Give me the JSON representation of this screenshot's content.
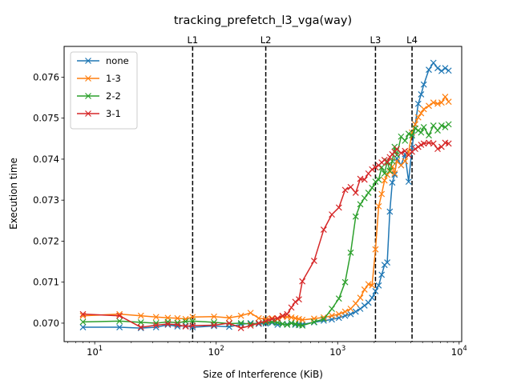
{
  "chart_data": {
    "type": "line",
    "title": "tracking_prefetch_l3_vga(way)",
    "xlabel": "Size of Interference (KiB)",
    "ylabel": "Execution time",
    "xscale": "log",
    "xlim": [
      5.6,
      10500
    ],
    "ylim": [
      0.06955,
      0.07675
    ],
    "x_ticks": [
      {
        "value": 10,
        "base": "10",
        "exp": "1"
      },
      {
        "value": 100,
        "base": "10",
        "exp": "2"
      },
      {
        "value": 1000,
        "base": "10",
        "exp": "3"
      },
      {
        "value": 10000,
        "base": "10",
        "exp": "4"
      }
    ],
    "y_ticks": [
      {
        "value": 0.07,
        "label": "0.070"
      },
      {
        "value": 0.071,
        "label": "0.071"
      },
      {
        "value": 0.072,
        "label": "0.072"
      },
      {
        "value": 0.073,
        "label": "0.073"
      },
      {
        "value": 0.074,
        "label": "0.074"
      },
      {
        "value": 0.075,
        "label": "0.075"
      },
      {
        "value": 0.076,
        "label": "0.076"
      }
    ],
    "grid": false,
    "legend_position": "upper-left",
    "vertical_lines": [
      {
        "label": "L1",
        "x": 64
      },
      {
        "label": "L2",
        "x": 256
      },
      {
        "label": "L3",
        "x": 2048
      },
      {
        "label": "L4",
        "x": 4096
      }
    ],
    "series": [
      {
        "name": "none",
        "color": "#1f77b4",
        "marker": "x",
        "x": [
          8,
          16,
          24,
          32,
          40,
          48,
          56,
          64,
          96,
          128,
          160,
          192,
          224,
          256,
          288,
          320,
          352,
          384,
          416,
          448,
          480,
          512,
          640,
          768,
          896,
          1024,
          1152,
          1280,
          1408,
          1536,
          1664,
          1792,
          1920,
          2048,
          2176,
          2304,
          2432,
          2560,
          2688,
          2816,
          2944,
          3072,
          3328,
          3584,
          3840,
          4096,
          4352,
          4608,
          4864,
          5120,
          5632,
          6144,
          6656,
          7168,
          7680,
          8192
        ],
        "y": [
          0.0699,
          0.0699,
          0.06988,
          0.0699,
          0.06996,
          0.06992,
          0.06994,
          0.0699,
          0.06993,
          0.06991,
          0.06997,
          0.07,
          0.06998,
          0.06999,
          0.07001,
          0.06996,
          0.06998,
          0.06997,
          0.07,
          0.06996,
          0.06998,
          0.06997,
          0.07002,
          0.07006,
          0.07009,
          0.07013,
          0.07018,
          0.07022,
          0.07028,
          0.07035,
          0.07043,
          0.0705,
          0.07062,
          0.07078,
          0.07092,
          0.07118,
          0.07142,
          0.07148,
          0.07272,
          0.07343,
          0.07362,
          0.07402,
          0.07385,
          0.07412,
          0.07345,
          0.07428,
          0.07485,
          0.07535,
          0.07558,
          0.07582,
          0.07618,
          0.07635,
          0.07622,
          0.07615,
          0.07622,
          0.07616
        ]
      },
      {
        "name": "1-3",
        "color": "#ff7f0e",
        "marker": "x",
        "x": [
          8,
          16,
          24,
          32,
          40,
          48,
          56,
          64,
          96,
          128,
          160,
          192,
          224,
          256,
          288,
          320,
          352,
          384,
          416,
          448,
          480,
          512,
          640,
          768,
          896,
          1024,
          1152,
          1280,
          1408,
          1536,
          1664,
          1792,
          1920,
          2048,
          2176,
          2304,
          2432,
          2560,
          2688,
          2816,
          2944,
          3072,
          3328,
          3584,
          3840,
          4096,
          4352,
          4608,
          4864,
          5120,
          5632,
          6144,
          6656,
          7168,
          7680,
          8192
        ],
        "y": [
          0.07018,
          0.07022,
          0.07018,
          0.07015,
          0.07013,
          0.07012,
          0.0701,
          0.07015,
          0.07016,
          0.07013,
          0.07018,
          0.07025,
          0.07012,
          0.0701,
          0.07012,
          0.0701,
          0.07016,
          0.07015,
          0.07014,
          0.07012,
          0.0701,
          0.07008,
          0.07011,
          0.07014,
          0.07018,
          0.07022,
          0.07028,
          0.07035,
          0.07048,
          0.07062,
          0.07082,
          0.07095,
          0.07092,
          0.0718,
          0.07285,
          0.07315,
          0.07348,
          0.07362,
          0.0737,
          0.07382,
          0.07365,
          0.07395,
          0.07385,
          0.07395,
          0.07418,
          0.07465,
          0.07485,
          0.07502,
          0.07512,
          0.07522,
          0.0753,
          0.07538,
          0.07535,
          0.07538,
          0.07552,
          0.0754
        ]
      },
      {
        "name": "2-2",
        "color": "#2ca02c",
        "marker": "x",
        "x": [
          8,
          16,
          24,
          32,
          40,
          48,
          56,
          64,
          96,
          128,
          160,
          192,
          224,
          256,
          288,
          320,
          352,
          384,
          416,
          448,
          480,
          512,
          640,
          768,
          896,
          1024,
          1152,
          1280,
          1408,
          1536,
          1664,
          1792,
          1920,
          2048,
          2176,
          2304,
          2432,
          2560,
          2688,
          2816,
          2944,
          3072,
          3328,
          3584,
          3840,
          4096,
          4352,
          4608,
          4864,
          5120,
          5632,
          6144,
          6656,
          7168,
          7680,
          8192
        ],
        "y": [
          0.07003,
          0.07005,
          0.07002,
          0.07,
          0.07003,
          0.07001,
          0.07004,
          0.07005,
          0.07002,
          0.06999,
          0.07,
          0.06998,
          0.07,
          0.07002,
          0.07003,
          0.07001,
          0.06998,
          0.06996,
          0.07,
          0.06998,
          0.06995,
          0.06994,
          0.07003,
          0.0701,
          0.07035,
          0.0706,
          0.071,
          0.07172,
          0.0726,
          0.0729,
          0.07305,
          0.07318,
          0.0733,
          0.07345,
          0.0735,
          0.0738,
          0.07365,
          0.07395,
          0.07372,
          0.07395,
          0.0743,
          0.0741,
          0.07455,
          0.07445,
          0.07462,
          0.07458,
          0.07475,
          0.0747,
          0.07465,
          0.07478,
          0.07458,
          0.07482,
          0.0747,
          0.07482,
          0.07478,
          0.07485
        ]
      },
      {
        "name": "3-1",
        "color": "#d62728",
        "marker": "x",
        "x": [
          8,
          16,
          24,
          32,
          40,
          48,
          56,
          64,
          96,
          128,
          160,
          192,
          224,
          256,
          288,
          320,
          352,
          384,
          416,
          448,
          480,
          512,
          640,
          768,
          896,
          1024,
          1152,
          1280,
          1408,
          1536,
          1664,
          1792,
          1920,
          2048,
          2176,
          2304,
          2432,
          2560,
          2688,
          2816,
          2944,
          3072,
          3328,
          3584,
          3840,
          4096,
          4352,
          4608,
          4864,
          5120,
          5632,
          6144,
          6656,
          7168,
          7680,
          8192
        ],
        "y": [
          0.07022,
          0.07018,
          0.0699,
          0.06995,
          0.06998,
          0.06996,
          0.06992,
          0.06994,
          0.06995,
          0.07,
          0.06988,
          0.06994,
          0.07,
          0.07005,
          0.0701,
          0.07012,
          0.07018,
          0.07022,
          0.07038,
          0.07052,
          0.07058,
          0.07102,
          0.07152,
          0.07228,
          0.07265,
          0.07282,
          0.07325,
          0.07332,
          0.07318,
          0.07352,
          0.0735,
          0.07365,
          0.07375,
          0.0738,
          0.07385,
          0.07392,
          0.07398,
          0.07392,
          0.07405,
          0.07412,
          0.07418,
          0.07425,
          0.07415,
          0.0742,
          0.0741,
          0.07418,
          0.07425,
          0.0743,
          0.07435,
          0.07438,
          0.0744,
          0.07438,
          0.07425,
          0.0743,
          0.0744,
          0.07438
        ]
      }
    ]
  }
}
